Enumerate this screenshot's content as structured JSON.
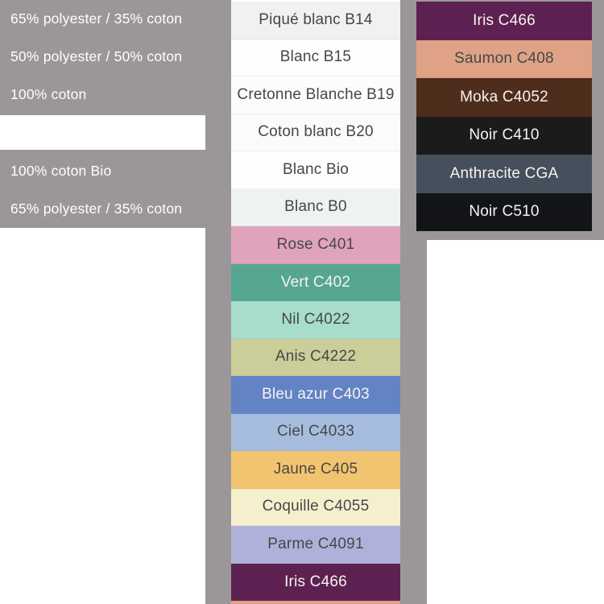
{
  "page": {
    "background": "#ffffff",
    "panel_gray": "#9b9798",
    "dark_text": "#474747",
    "light_text": "#f7f3f1"
  },
  "left_panel": {
    "labels": [
      {
        "text": "65% polyester / 35% coton",
        "blank": false
      },
      {
        "text": "50% polyester / 50% coton",
        "blank": false
      },
      {
        "text": "100% coton",
        "blank": false
      },
      {
        "text": "",
        "blank": true
      },
      {
        "text": "100% coton Bio",
        "blank": false
      },
      {
        "text": "65% polyester / 35% coton",
        "blank": false
      }
    ]
  },
  "middle_column": {
    "swatches": [
      {
        "label": "Piqué blanc B14",
        "color": "#f1f1ef",
        "text": "dark"
      },
      {
        "label": "Blanc B15",
        "color": "#fdfdfd",
        "text": "dark"
      },
      {
        "label": "Cretonne Blanche B19",
        "color": "#fcfcfb",
        "text": "dark"
      },
      {
        "label": "Coton blanc B20",
        "color": "#fbfbfa",
        "text": "dark"
      },
      {
        "label": "Blanc Bio",
        "color": "#fdfdfc",
        "text": "dark"
      },
      {
        "label": "Blanc B0",
        "color": "#eff3f0",
        "text": "dark"
      },
      {
        "label": "Rose C401",
        "color": "#dfa3bc",
        "text": "dark"
      },
      {
        "label": "Vert C402",
        "color": "#55a690",
        "text": "light"
      },
      {
        "label": "Nil C4022",
        "color": "#a7ddca",
        "text": "dark"
      },
      {
        "label": "Anis C4222",
        "color": "#cbce99",
        "text": "dark"
      },
      {
        "label": "Bleu azur C403",
        "color": "#6283c4",
        "text": "light"
      },
      {
        "label": "Ciel C4033",
        "color": "#a6bcdf",
        "text": "dark"
      },
      {
        "label": "Jaune C405",
        "color": "#f3c46f",
        "text": "dark"
      },
      {
        "label": "Coquille C4055",
        "color": "#f6efce",
        "text": "dark"
      },
      {
        "label": "Parme C4091",
        "color": "#aeb2da",
        "text": "dark"
      },
      {
        "label": "Iris C466",
        "color": "#5d2151",
        "text": "light"
      }
    ],
    "bottom_sliver_color": "#dfa287"
  },
  "right_column": {
    "swatches": [
      {
        "label": "Iris C466",
        "color": "#5d2151",
        "text": "light"
      },
      {
        "label": "Saumon C408",
        "color": "#dfa287",
        "text": "dark"
      },
      {
        "label": "Moka C4052",
        "color": "#4f2d1c",
        "text": "light"
      },
      {
        "label": "Noir C410",
        "color": "#1b1b1b",
        "text": "light"
      },
      {
        "label": "Anthracite CGA",
        "color": "#45505c",
        "text": "light"
      },
      {
        "label": "Noir C510",
        "color": "#121418",
        "text": "light"
      }
    ]
  }
}
